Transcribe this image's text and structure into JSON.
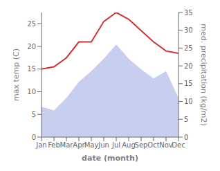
{
  "chart_data": {
    "type": "line",
    "categories": [
      "Jan",
      "Feb",
      "Mar",
      "Apr",
      "May",
      "Jun",
      "Jul",
      "Aug",
      "Sep",
      "Oct",
      "Nov",
      "Dec"
    ],
    "series": [
      {
        "type": "area",
        "color": "#c8cef0",
        "axis": "y2",
        "values": [
          8.5,
          7.5,
          11.0,
          15.5,
          18.5,
          22.0,
          26.0,
          22.0,
          19.0,
          16.5,
          18.5,
          11.0
        ]
      },
      {
        "type": "line",
        "color": "#cc3333",
        "values": [
          15.0,
          15.5,
          17.5,
          21.0,
          21.0,
          25.5,
          27.5,
          26.0,
          23.5,
          21.0,
          19.0,
          18.5
        ]
      }
    ],
    "xlabel": "date (month)",
    "ylabel": "max temp (C)",
    "y2label": "med. precipitation (kg/m2)",
    "ylim": [
      0,
      27.5
    ],
    "yticks": [
      0,
      5,
      10,
      15,
      20,
      25
    ],
    "y2lim": [
      0,
      35
    ],
    "y2ticks": [
      0,
      5,
      10,
      15,
      20,
      25,
      30,
      35
    ],
    "grid": false
  }
}
